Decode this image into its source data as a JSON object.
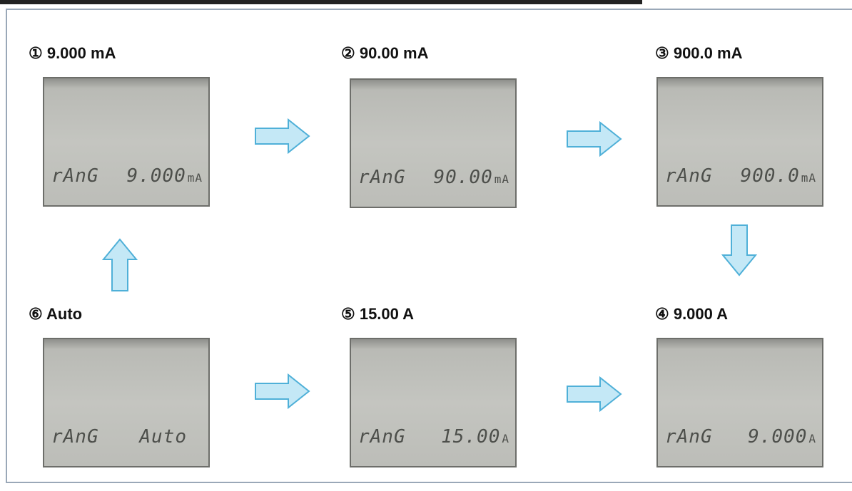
{
  "panels": [
    {
      "label": "① 9.000 mA",
      "lcd_left": "rAnG",
      "lcd_value": "9.000",
      "lcd_unit": "mA"
    },
    {
      "label": "② 90.00 mA",
      "lcd_left": "rAnG",
      "lcd_value": "90.00",
      "lcd_unit": "mA"
    },
    {
      "label": "③ 900.0 mA",
      "lcd_left": "rAnG",
      "lcd_value": "900.0",
      "lcd_unit": "mA"
    },
    {
      "label": "④ 9.000 A",
      "lcd_left": "rAnG",
      "lcd_value": "9.000",
      "lcd_unit": "A"
    },
    {
      "label": "⑤ 15.00 A",
      "lcd_left": "rAnG",
      "lcd_value": "15.00",
      "lcd_unit": "A"
    },
    {
      "label": "⑥ Auto",
      "lcd_left": "rAnG",
      "lcd_value": "Auto"
    }
  ]
}
